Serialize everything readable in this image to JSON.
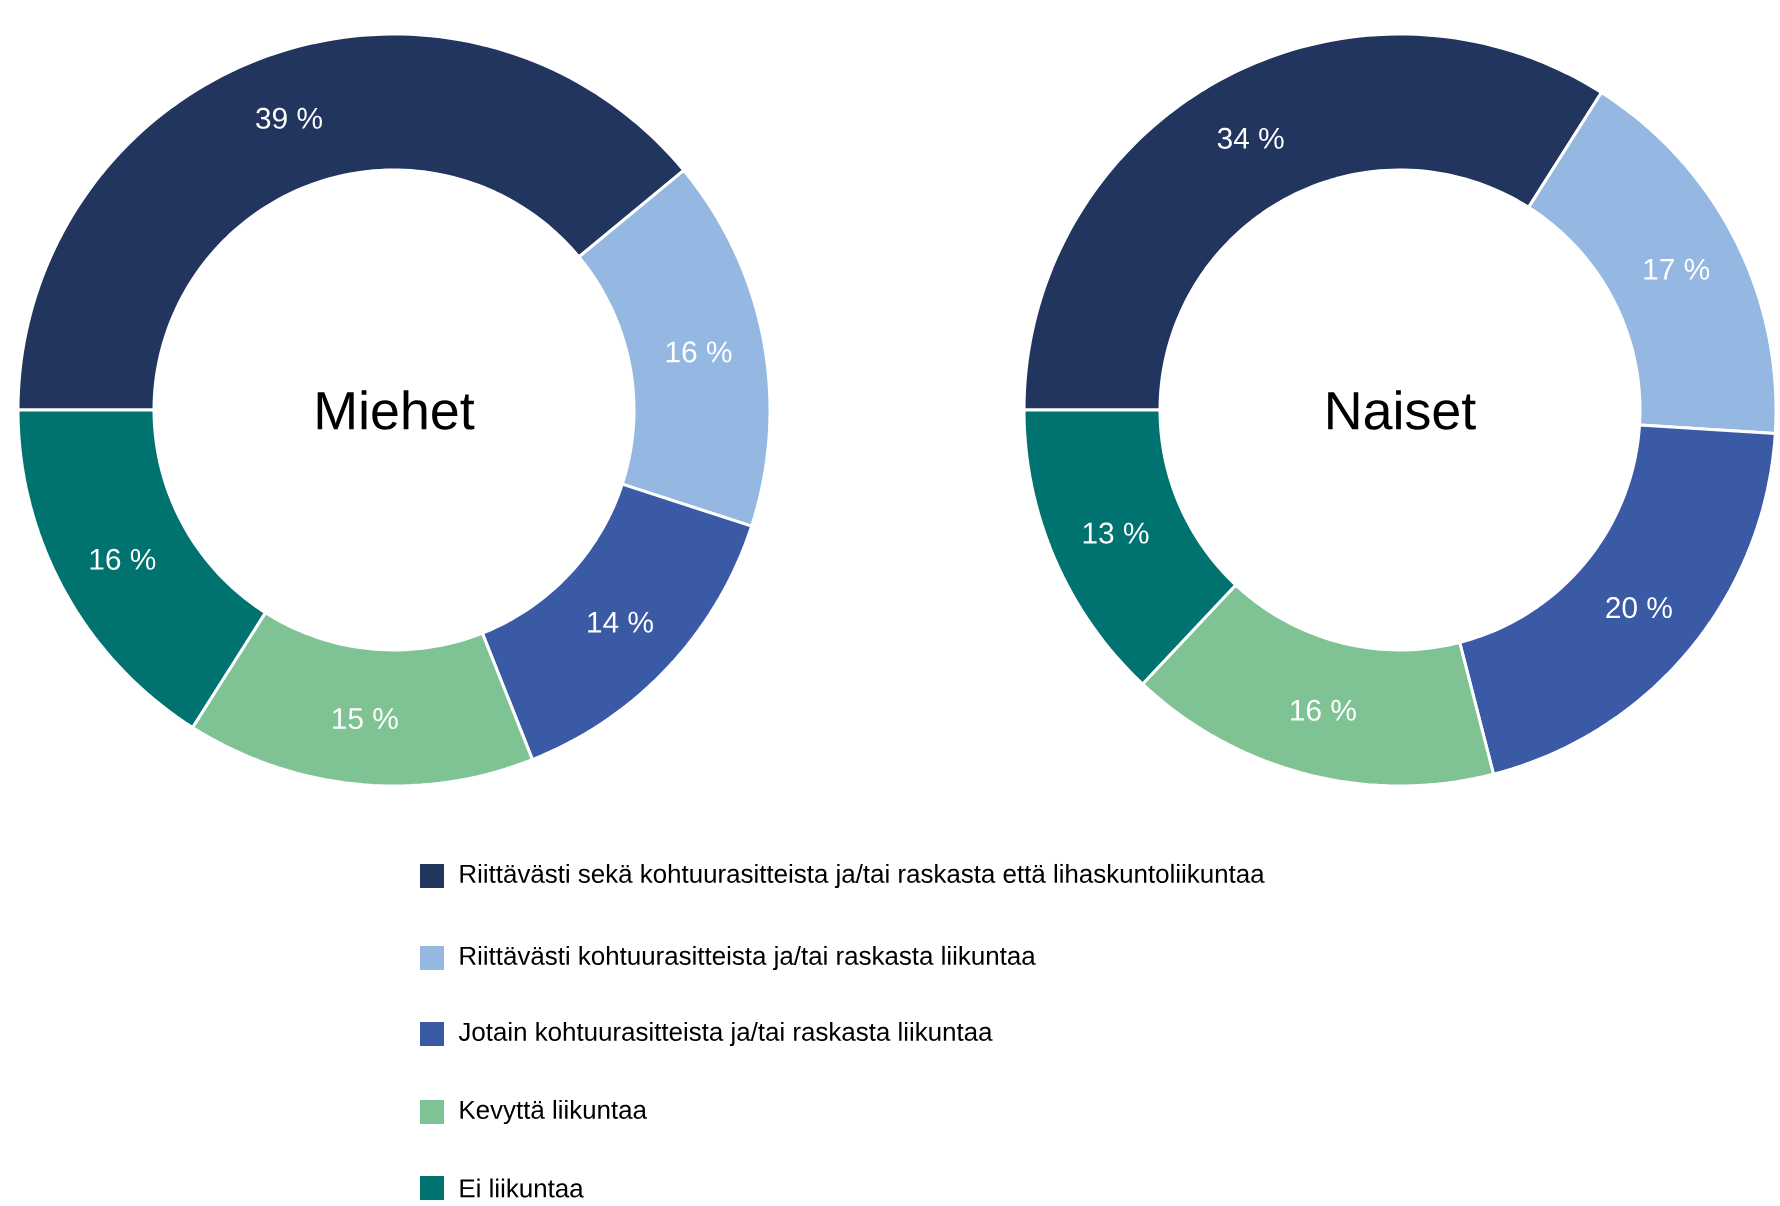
{
  "chart_data": {
    "type": "donut",
    "categories": [
      "Riittävästi sekä kohtuurasitteista ja/tai raskasta että lihaskuntoliikuntaa",
      "Riittävästi kohtuurasitteista ja/tai raskasta liikuntaa",
      "Jotain kohtuurasitteista ja/tai raskasta liikuntaa",
      "Kevyttä liikuntaa",
      "Ei liikuntaa"
    ],
    "colors": [
      "#22355f",
      "#95b8e3",
      "#3a5aa5",
      "#7fc394",
      "#007370"
    ],
    "legend": "bottom",
    "series": [
      {
        "name": "Miehet",
        "values": [
          39,
          16,
          14,
          15,
          16
        ],
        "value_labels": [
          "39 %",
          "16 %",
          "14 %",
          "15 %",
          "16 %"
        ]
      },
      {
        "name": "Naiset",
        "values": [
          34,
          17,
          20,
          16,
          13
        ],
        "value_labels": [
          "34 %",
          "17 %",
          "20 %",
          "16 %",
          "13 %"
        ]
      }
    ]
  }
}
